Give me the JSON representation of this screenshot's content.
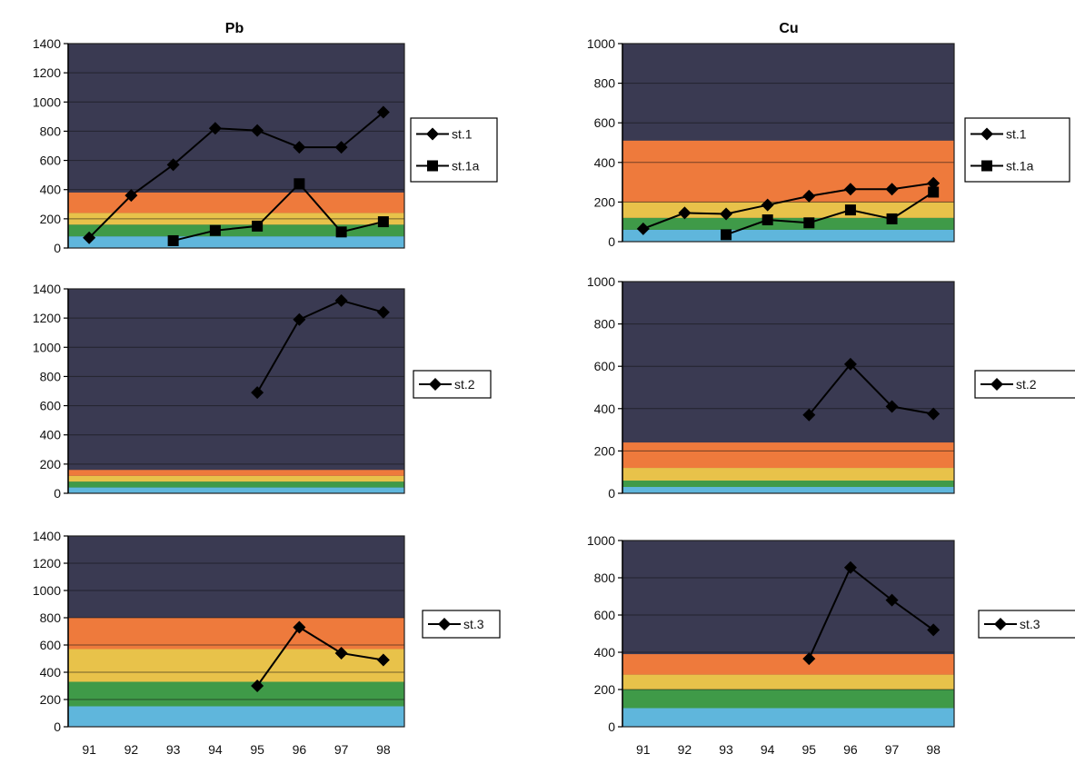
{
  "colors": {
    "background": "#3a3a52",
    "band_blue": "#5fb6dc",
    "band_green": "#3f9a48",
    "band_yellow": "#e8c24a",
    "band_orange": "#ee7a3c",
    "series_line": "#000000"
  },
  "figure": {
    "column_titles": [
      "Pb",
      "Cu"
    ]
  },
  "chart_data": [
    {
      "id": "pb-top",
      "type": "line",
      "title": "",
      "categories": [
        "91",
        "92",
        "93",
        "94",
        "95",
        "96",
        "97",
        "98"
      ],
      "ylim": [
        0,
        1400
      ],
      "yticks": [
        0,
        200,
        400,
        600,
        800,
        1000,
        1200,
        1400
      ],
      "show_x_ticks": false,
      "grid": true,
      "bands": [
        {
          "from": 0,
          "to": 80,
          "color": "#5fb6dc"
        },
        {
          "from": 80,
          "to": 160,
          "color": "#3f9a48"
        },
        {
          "from": 160,
          "to": 240,
          "color": "#e8c24a"
        },
        {
          "from": 240,
          "to": 380,
          "color": "#ee7a3c"
        }
      ],
      "series": [
        {
          "name": "st.1",
          "marker": "diamond",
          "values": [
            70,
            360,
            570,
            820,
            805,
            690,
            690,
            930
          ]
        },
        {
          "name": "st.1a",
          "marker": "square",
          "values": [
            null,
            null,
            50,
            120,
            150,
            440,
            110,
            180
          ]
        }
      ],
      "legend": "right"
    },
    {
      "id": "cu-top",
      "type": "line",
      "title": "",
      "categories": [
        "91",
        "92",
        "93",
        "94",
        "95",
        "96",
        "97",
        "98"
      ],
      "ylim": [
        0,
        1000
      ],
      "yticks": [
        0,
        200,
        400,
        600,
        800,
        1000
      ],
      "show_x_ticks": false,
      "grid": true,
      "bands": [
        {
          "from": 0,
          "to": 60,
          "color": "#5fb6dc"
        },
        {
          "from": 60,
          "to": 120,
          "color": "#3f9a48"
        },
        {
          "from": 120,
          "to": 200,
          "color": "#e8c24a"
        },
        {
          "from": 200,
          "to": 510,
          "color": "#ee7a3c"
        }
      ],
      "series": [
        {
          "name": "st.1",
          "marker": "diamond",
          "values": [
            65,
            145,
            140,
            185,
            230,
            265,
            265,
            295
          ]
        },
        {
          "name": "st.1a",
          "marker": "square",
          "values": [
            null,
            null,
            35,
            110,
            95,
            160,
            115,
            250
          ]
        }
      ],
      "legend": "right"
    },
    {
      "id": "pb-mid",
      "type": "line",
      "title": "",
      "categories": [
        "91",
        "92",
        "93",
        "94",
        "95",
        "96",
        "97",
        "98"
      ],
      "ylim": [
        0,
        1400
      ],
      "yticks": [
        0,
        200,
        400,
        600,
        800,
        1000,
        1200,
        1400
      ],
      "show_x_ticks": false,
      "grid": true,
      "bands": [
        {
          "from": 0,
          "to": 40,
          "color": "#5fb6dc"
        },
        {
          "from": 40,
          "to": 80,
          "color": "#3f9a48"
        },
        {
          "from": 80,
          "to": 120,
          "color": "#e8c24a"
        },
        {
          "from": 120,
          "to": 160,
          "color": "#ee7a3c"
        }
      ],
      "series": [
        {
          "name": "st.2",
          "marker": "diamond",
          "values": [
            null,
            null,
            null,
            null,
            690,
            1190,
            1320,
            1240
          ]
        }
      ],
      "legend": "right"
    },
    {
      "id": "cu-mid",
      "type": "line",
      "title": "",
      "categories": [
        "91",
        "92",
        "93",
        "94",
        "95",
        "96",
        "97",
        "98"
      ],
      "ylim": [
        0,
        1000
      ],
      "yticks": [
        0,
        200,
        400,
        600,
        800,
        1000
      ],
      "show_x_ticks": false,
      "grid": true,
      "bands": [
        {
          "from": 0,
          "to": 30,
          "color": "#5fb6dc"
        },
        {
          "from": 30,
          "to": 60,
          "color": "#3f9a48"
        },
        {
          "from": 60,
          "to": 120,
          "color": "#e8c24a"
        },
        {
          "from": 120,
          "to": 240,
          "color": "#ee7a3c"
        }
      ],
      "series": [
        {
          "name": "st.2",
          "marker": "diamond",
          "values": [
            null,
            null,
            null,
            null,
            370,
            610,
            410,
            375
          ]
        }
      ],
      "legend": "right"
    },
    {
      "id": "pb-bot",
      "type": "line",
      "title": "",
      "categories": [
        "91",
        "92",
        "93",
        "94",
        "95",
        "96",
        "97",
        "98"
      ],
      "ylim": [
        0,
        1400
      ],
      "yticks": [
        0,
        200,
        400,
        600,
        800,
        1000,
        1200,
        1400
      ],
      "show_x_ticks": true,
      "grid": true,
      "bands": [
        {
          "from": 0,
          "to": 150,
          "color": "#5fb6dc"
        },
        {
          "from": 150,
          "to": 330,
          "color": "#3f9a48"
        },
        {
          "from": 330,
          "to": 570,
          "color": "#e8c24a"
        },
        {
          "from": 570,
          "to": 800,
          "color": "#ee7a3c"
        }
      ],
      "series": [
        {
          "name": "st.3",
          "marker": "diamond",
          "values": [
            null,
            null,
            null,
            null,
            300,
            730,
            540,
            490
          ]
        }
      ],
      "legend": "right"
    },
    {
      "id": "cu-bot",
      "type": "line",
      "title": "",
      "categories": [
        "91",
        "92",
        "93",
        "94",
        "95",
        "96",
        "97",
        "98"
      ],
      "ylim": [
        0,
        1000
      ],
      "yticks": [
        0,
        200,
        400,
        600,
        800,
        1000
      ],
      "show_x_ticks": true,
      "grid": true,
      "bands": [
        {
          "from": 0,
          "to": 100,
          "color": "#5fb6dc"
        },
        {
          "from": 100,
          "to": 200,
          "color": "#3f9a48"
        },
        {
          "from": 200,
          "to": 280,
          "color": "#e8c24a"
        },
        {
          "from": 280,
          "to": 390,
          "color": "#ee7a3c"
        }
      ],
      "series": [
        {
          "name": "st.3",
          "marker": "diamond",
          "values": [
            null,
            null,
            null,
            null,
            365,
            855,
            680,
            520
          ]
        }
      ],
      "legend": "right"
    }
  ]
}
